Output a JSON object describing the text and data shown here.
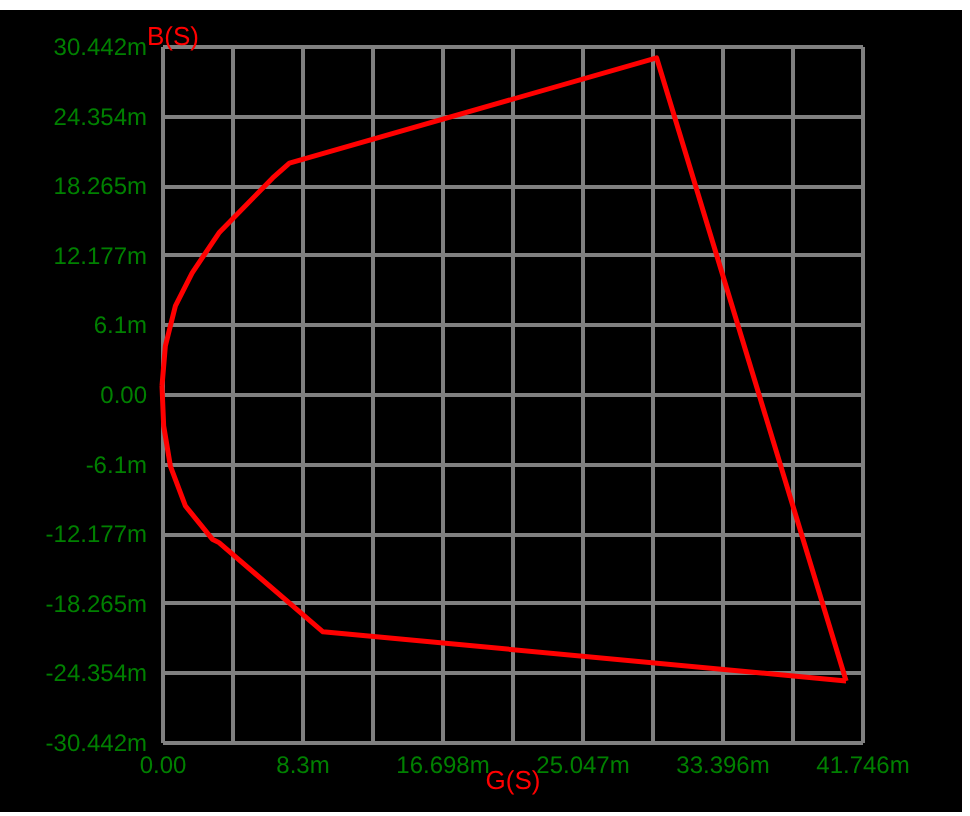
{
  "chart_data": {
    "type": "line",
    "xlabel": "G(S)",
    "ylabel": "B(S)",
    "xlim": [
      0,
      41.746
    ],
    "ylim": [
      -30.442,
      30.442
    ],
    "xticks": [
      {
        "value": 0,
        "label": "0.00"
      },
      {
        "value": 4.175,
        "label": null
      },
      {
        "value": 8.349,
        "label": "8.3m"
      },
      {
        "value": 12.524,
        "label": null
      },
      {
        "value": 16.698,
        "label": "16.698m"
      },
      {
        "value": 20.873,
        "label": null
      },
      {
        "value": 25.047,
        "label": "25.047m"
      },
      {
        "value": 29.222,
        "label": null
      },
      {
        "value": 33.396,
        "label": "33.396m"
      },
      {
        "value": 37.571,
        "label": null
      },
      {
        "value": 41.746,
        "label": "41.746m"
      }
    ],
    "yticks": [
      {
        "value": -30.442,
        "label": "-30.442m"
      },
      {
        "value": -24.354,
        "label": "-24.354m"
      },
      {
        "value": -18.265,
        "label": "-18.265m"
      },
      {
        "value": -12.177,
        "label": "-12.177m"
      },
      {
        "value": -6.088,
        "label": "-6.1m"
      },
      {
        "value": 0,
        "label": "0.00"
      },
      {
        "value": 6.088,
        "label": "6.1m"
      },
      {
        "value": 12.177,
        "label": "12.177m"
      },
      {
        "value": 18.265,
        "label": "18.265m"
      },
      {
        "value": 24.354,
        "label": "24.354m"
      },
      {
        "value": 30.442,
        "label": "30.442m"
      }
    ],
    "grid": true,
    "series": [
      {
        "color": "#ff0000",
        "x": [
          0.0,
          0.2,
          0.8,
          1.8,
          3.4,
          6.6,
          7.6,
          29.5,
          40.8,
          null,
          0.0,
          0.1,
          0.5,
          1.4,
          3.0,
          3.4,
          9.6,
          40.8
        ],
        "values": [
          0.7,
          4.2,
          7.7,
          10.6,
          14.1,
          18.9,
          20.2,
          29.4,
          -25.1,
          null,
          0.7,
          -2.8,
          -6.3,
          -9.8,
          -12.7,
          -13.0,
          -20.8,
          -25.1
        ]
      }
    ]
  }
}
